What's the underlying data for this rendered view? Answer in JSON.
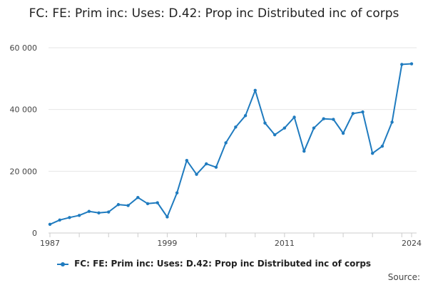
{
  "chart_data": {
    "type": "line",
    "title": "FC: FE: Prim inc: Uses: D.42: Prop inc Distributed inc of corps",
    "xlabel": "",
    "ylabel": "",
    "x_tick_labels": [
      "1987",
      "1999",
      "2011",
      "2024"
    ],
    "y_tick_labels": [
      "0",
      "20 000",
      "40 000",
      "60 000"
    ],
    "y_ticks": [
      0,
      20000,
      40000,
      60000
    ],
    "ylim": [
      0,
      60000
    ],
    "xlim": [
      1987,
      2024
    ],
    "grid": "horizontal",
    "legend_position": "bottom",
    "series_color": "#1f7bbf",
    "x": [
      1987,
      1988,
      1989,
      1990,
      1991,
      1992,
      1993,
      1994,
      1995,
      1996,
      1997,
      1998,
      1999,
      2000,
      2001,
      2002,
      2003,
      2004,
      2005,
      2006,
      2007,
      2008,
      2009,
      2010,
      2011,
      2012,
      2013,
      2014,
      2015,
      2016,
      2017,
      2018,
      2019,
      2020,
      2021,
      2022,
      2023,
      2024
    ],
    "series": [
      {
        "name": "FC: FE: Prim inc: Uses: D.42: Prop inc Distributed inc of corps",
        "values": [
          2800,
          4200,
          5000,
          5700,
          7000,
          6500,
          6800,
          9200,
          8900,
          11500,
          9500,
          9800,
          5200,
          13000,
          23500,
          19000,
          22400,
          21300,
          29200,
          34300,
          38000,
          46200,
          35600,
          31800,
          34000,
          37500,
          26500,
          34000,
          37000,
          36800,
          32300,
          38700,
          39200,
          25800,
          28100,
          35900,
          54600,
          54800
        ]
      }
    ]
  },
  "source_label": "Source:"
}
